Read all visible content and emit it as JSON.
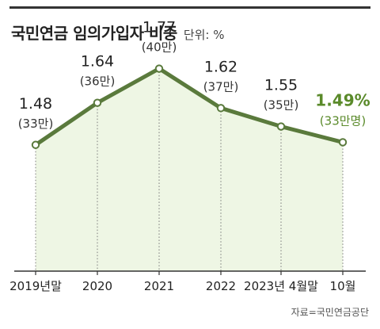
{
  "header": {
    "title": "국민연금 임의가입자 비중",
    "unit_label": "단위: %"
  },
  "source": "자료=국민연금공단",
  "colors": {
    "line": "#5a7a3c",
    "area": "#eef6e4",
    "highlight": "#5a8a2a",
    "axis": "#333333"
  },
  "chart_data": {
    "type": "line",
    "title": "국민연금 임의가입자 비중",
    "unit": "단위: %",
    "categories": [
      "2019년말",
      "2020",
      "2021",
      "2022",
      "2023년 4월말",
      "10월"
    ],
    "series": [
      {
        "values": [
          1.48,
          1.64,
          1.77,
          1.62,
          1.55,
          1.49
        ],
        "value_labels": [
          "1.48",
          "1.64",
          "1.77",
          "1.62",
          "1.55",
          "1.49%"
        ],
        "sub_labels": [
          "(33만)",
          "(36만)",
          "(40만)",
          "(37만)",
          "(35만)",
          "(33만명)"
        ]
      }
    ],
    "ylim": [
      1.0,
      1.85
    ],
    "highlight_index": 5,
    "grid": false,
    "legend": "none"
  }
}
